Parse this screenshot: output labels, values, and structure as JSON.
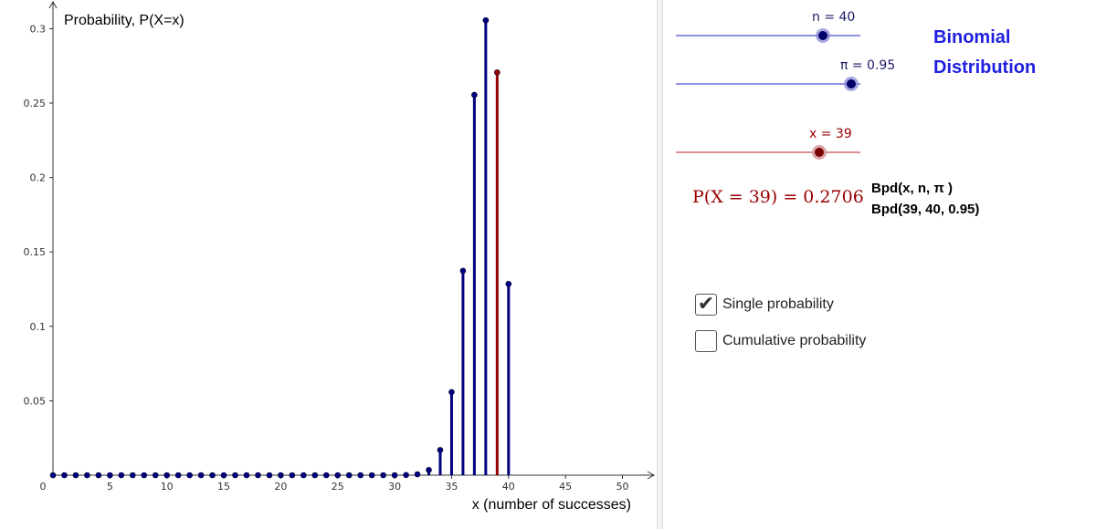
{
  "chart_data": {
    "type": "stem",
    "title": "",
    "ylabel": "Probability, P(X=x)",
    "xlabel": "x (number of successes)",
    "xlim": [
      0,
      52.5
    ],
    "ylim": [
      0,
      0.32
    ],
    "xticks": [
      0,
      5,
      10,
      15,
      20,
      25,
      30,
      35,
      40,
      45,
      50
    ],
    "yticks": [
      0.05,
      0.1,
      0.15,
      0.2,
      0.25,
      0.3
    ],
    "x": [
      0,
      1,
      2,
      3,
      4,
      5,
      6,
      7,
      8,
      9,
      10,
      11,
      12,
      13,
      14,
      15,
      16,
      17,
      18,
      19,
      20,
      21,
      22,
      23,
      24,
      25,
      26,
      27,
      28,
      29,
      30,
      31,
      32,
      33,
      34,
      35,
      36,
      37,
      38,
      39,
      40
    ],
    "values": [
      0,
      0,
      0,
      0,
      0,
      0,
      0,
      0,
      0,
      0,
      0,
      0,
      0,
      0,
      0,
      0,
      0,
      0,
      0,
      0,
      0,
      0,
      0,
      0,
      0,
      0,
      0,
      0,
      0,
      0,
      0,
      0.0001,
      0.0006,
      0.0035,
      0.0169,
      0.0558,
      0.1373,
      0.2555,
      0.3056,
      0.2706,
      0.1285
    ],
    "highlight_x": 39,
    "series_color": "#000080",
    "highlight_color": "#990000",
    "grid": false
  },
  "controls": {
    "n_slider": {
      "label": "n = 40",
      "value": 40,
      "min": 1,
      "max": 50
    },
    "pi_slider": {
      "label": "π = 0.95",
      "value": 0.95,
      "min": 0,
      "max": 1
    },
    "x_slider": {
      "label": "x = 39",
      "value": 39,
      "min": 0,
      "max": 50
    }
  },
  "title_line1": "Binomial",
  "title_line2": "Distribution",
  "formula": "P(X = 39) = 0.2706",
  "bpd_generic": "Bpd(x, n, π )",
  "bpd_specific": "Bpd(39, 40, 0.95)",
  "checkboxes": {
    "single": {
      "label": "Single probability",
      "checked": true
    },
    "cumulative": {
      "label": "Cumulative probability",
      "checked": false
    }
  },
  "colors": {
    "blue_slider": "#6b6bd6",
    "red_slider": "#d06a6a",
    "title_blue": "#1f1fe0",
    "dark_red": "#990000"
  }
}
